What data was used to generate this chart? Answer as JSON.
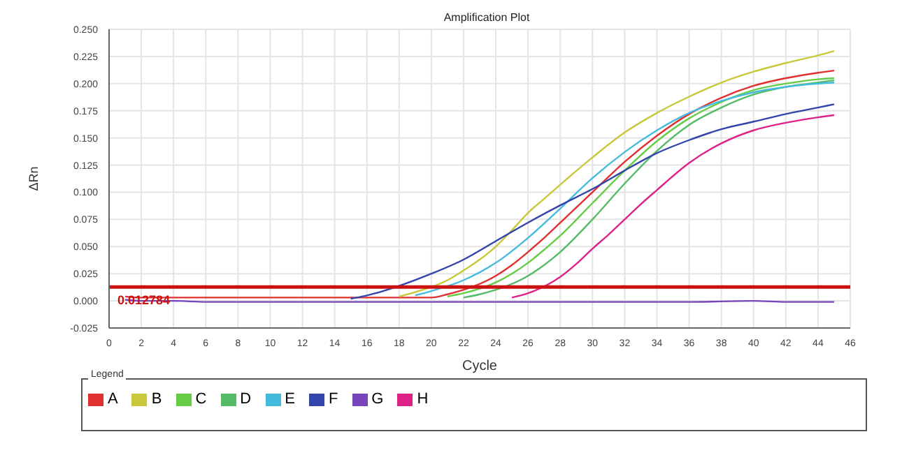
{
  "chart_data": {
    "type": "line",
    "title": "Amplification Plot",
    "xlabel": "Cycle",
    "ylabel": "ΔRn",
    "legend_title": "Legend",
    "xlim": [
      0,
      46
    ],
    "xticks": [
      0,
      2,
      4,
      6,
      8,
      10,
      12,
      14,
      16,
      18,
      20,
      22,
      24,
      26,
      28,
      30,
      32,
      34,
      36,
      38,
      40,
      42,
      44,
      46
    ],
    "ylim": [
      -0.025,
      0.25
    ],
    "yticks": [
      {
        "value": -0.025,
        "label": "-0.025"
      },
      {
        "value": 0,
        "label": "0.000"
      },
      {
        "value": 0.025,
        "label": "0.025"
      },
      {
        "value": 0.05,
        "label": "0.050"
      },
      {
        "value": 0.075,
        "label": "0.075"
      },
      {
        "value": 0.1,
        "label": "0.100"
      },
      {
        "value": 0.125,
        "label": "0.125"
      },
      {
        "value": 0.15,
        "label": "0.150"
      },
      {
        "value": 0.175,
        "label": "0.175"
      },
      {
        "value": 0.2,
        "label": "0.200"
      },
      {
        "value": 0.225,
        "label": "0.225"
      },
      {
        "value": 0.25,
        "label": "0.250"
      }
    ],
    "grid": true,
    "legend": "bottom",
    "marker": "none",
    "line_style": "solid",
    "ref_lines": [
      {
        "axis": "y",
        "value": 0.012784,
        "label": "0.012784",
        "color": "#cc1111"
      }
    ],
    "series": [
      {
        "name": "A",
        "color": "#e03030",
        "x": [
          1,
          2,
          4,
          20,
          21,
          24,
          25,
          26,
          27,
          28,
          30,
          32,
          34,
          36,
          38,
          40,
          42,
          44,
          45
        ],
        "values": [
          0.004,
          0.003,
          0.003,
          0.003,
          0.006,
          0.023,
          0.033,
          0.045,
          0.058,
          0.072,
          0.1,
          0.128,
          0.152,
          0.172,
          0.187,
          0.198,
          0.205,
          0.21,
          0.212
        ]
      },
      {
        "name": "B",
        "color": "#c8c83a",
        "x": [
          18,
          19,
          21,
          22,
          23,
          24,
          25,
          26,
          27,
          28,
          30,
          32,
          34,
          36,
          38,
          40,
          42,
          44,
          45
        ],
        "values": [
          0.004,
          0.008,
          0.019,
          0.028,
          0.038,
          0.05,
          0.065,
          0.081,
          0.094,
          0.107,
          0.132,
          0.155,
          0.173,
          0.188,
          0.201,
          0.211,
          0.219,
          0.226,
          0.23
        ]
      },
      {
        "name": "C",
        "color": "#66cc44",
        "x": [
          21,
          22,
          24,
          25,
          26,
          27,
          28,
          30,
          32,
          34,
          36,
          38,
          40,
          42,
          44,
          45
        ],
        "values": [
          0.004,
          0.007,
          0.017,
          0.025,
          0.035,
          0.047,
          0.06,
          0.09,
          0.12,
          0.147,
          0.168,
          0.183,
          0.194,
          0.2,
          0.204,
          0.205
        ]
      },
      {
        "name": "D",
        "color": "#55bb66",
        "x": [
          22,
          23,
          26,
          27,
          28,
          30,
          32,
          34,
          36,
          38,
          40,
          42,
          44,
          45
        ],
        "values": [
          0.003,
          0.006,
          0.023,
          0.033,
          0.045,
          0.075,
          0.108,
          0.138,
          0.162,
          0.178,
          0.19,
          0.197,
          0.201,
          0.203
        ]
      },
      {
        "name": "E",
        "color": "#44bbdd",
        "x": [
          19,
          20,
          22,
          24,
          26,
          28,
          30,
          32,
          34,
          36,
          38,
          40,
          42,
          44,
          45
        ],
        "values": [
          0.005,
          0.009,
          0.019,
          0.035,
          0.058,
          0.085,
          0.113,
          0.137,
          0.157,
          0.173,
          0.184,
          0.192,
          0.197,
          0.2,
          0.201
        ]
      },
      {
        "name": "F",
        "color": "#3344aa",
        "x": [
          15,
          16,
          17,
          20,
          22,
          24,
          26,
          28,
          30,
          32,
          34,
          36,
          38,
          40,
          42,
          44,
          45
        ],
        "values": [
          0.002,
          0.005,
          0.009,
          0.025,
          0.038,
          0.055,
          0.072,
          0.088,
          0.103,
          0.12,
          0.136,
          0.148,
          0.158,
          0.165,
          0.172,
          0.178,
          0.181
        ]
      },
      {
        "name": "G",
        "color": "#7744bb",
        "x": [
          1,
          2,
          4,
          6,
          10,
          14,
          20,
          26,
          30,
          36,
          40,
          42,
          45
        ],
        "values": [
          0.001,
          0,
          0,
          -0.001,
          -0.001,
          -0.001,
          -0.001,
          -0.001,
          -0.001,
          -0.001,
          0,
          -0.001,
          -0.001
        ]
      },
      {
        "name": "H",
        "color": "#dd2288",
        "x": [
          25,
          26,
          28,
          29,
          30,
          31,
          32,
          33,
          34,
          36,
          38,
          40,
          42,
          44,
          45
        ],
        "values": [
          0.003,
          0.007,
          0.022,
          0.034,
          0.048,
          0.061,
          0.075,
          0.089,
          0.102,
          0.127,
          0.145,
          0.157,
          0.164,
          0.169,
          0.171
        ]
      }
    ]
  }
}
